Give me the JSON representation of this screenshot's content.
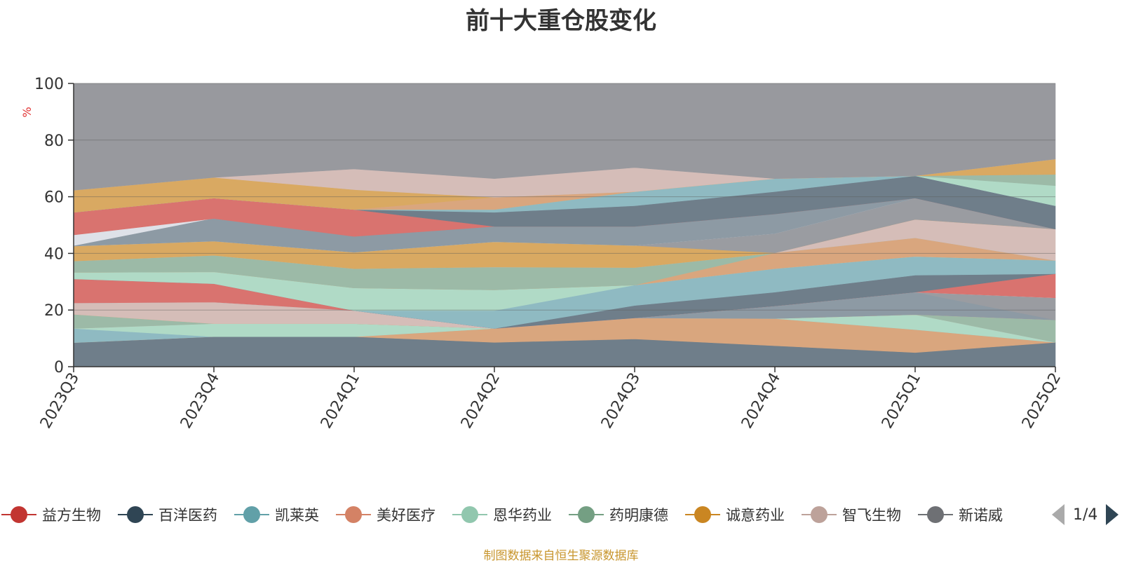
{
  "title": "前十大重仓股变化",
  "source_note": "制图数据来自恒生聚源数据库",
  "pager": {
    "text": "1/4"
  },
  "chart_data": {
    "type": "area",
    "stacked": true,
    "title": "前十大重仓股变化",
    "ylabel": "%",
    "ylim": [
      0,
      100
    ],
    "yticks": [
      0,
      20,
      40,
      60,
      80,
      100
    ],
    "categories": [
      "2023Q3",
      "2023Q4",
      "2024Q1",
      "2024Q2",
      "2024Q3",
      "2024Q4",
      "2025Q1",
      "2025Q2"
    ],
    "grid": true,
    "legend_position": "bottom",
    "bands": [
      {
        "color": "#6f7e8a",
        "lower": [
          0,
          0,
          0,
          0,
          0,
          0,
          0,
          0
        ],
        "upper": [
          8.5,
          10.6,
          10.6,
          8.6,
          9.8,
          7.4,
          5.0,
          8.6
        ]
      },
      {
        "color": "#d9a67e",
        "lower": [
          8.5,
          10.6,
          10.6,
          8.6,
          9.8,
          7.4,
          5.0,
          8.6
        ],
        "upper": [
          8.5,
          10.6,
          10.6,
          13.5,
          17.2,
          17.0,
          13.1,
          8.6
        ]
      },
      {
        "color": "#8fbac2",
        "lower": [
          8.5,
          10.6,
          10.6,
          13.5,
          17.2,
          17.0,
          13.1,
          8.6
        ],
        "upper": [
          13.5,
          10.6,
          10.6,
          13.5,
          17.2,
          17.0,
          13.1,
          8.6
        ]
      },
      {
        "color": "#b0dac6",
        "lower": [
          13.5,
          10.6,
          10.6,
          13.5,
          17.2,
          17.0,
          13.1,
          8.6
        ],
        "upper": [
          13.5,
          15.2,
          15.2,
          13.5,
          17.2,
          17.0,
          18.4,
          8.6
        ]
      },
      {
        "color": "#d5bdb8",
        "lower": [
          13.5,
          15.2,
          15.2,
          13.5,
          17.2,
          17.0,
          18.4,
          8.6
        ],
        "upper": [
          18.5,
          15.2,
          15.2,
          13.5,
          17.2,
          17.0,
          18.4,
          8.6
        ]
      },
      {
        "color": "#9cbaa7",
        "lower": [
          13.5,
          15.2,
          15.2,
          13.5,
          17.2,
          17.0,
          18.4,
          8.6
        ],
        "upper": [
          18.5,
          15.2,
          15.2,
          13.5,
          17.2,
          17.0,
          18.4,
          16.5
        ]
      },
      {
        "color": "#d9a962",
        "lower": [
          18.5,
          15.2,
          15.2,
          13.5,
          17.2,
          17.0,
          18.4,
          16.5
        ],
        "upper": [
          22.5,
          15.2,
          15.2,
          13.5,
          17.2,
          17.0,
          18.4,
          16.5
        ]
      },
      {
        "color": "#d5bdb8",
        "lower": [
          18.5,
          15.2,
          15.2,
          13.5,
          17.2,
          17.0,
          18.4,
          16.5
        ],
        "upper": [
          22.5,
          22.8,
          19.8,
          13.5,
          17.2,
          17.0,
          18.4,
          16.5
        ]
      },
      {
        "color": "#8d9aa4",
        "lower": [
          22.5,
          22.8,
          19.8,
          13.5,
          17.2,
          17.0,
          18.4,
          16.5
        ],
        "upper": [
          31,
          29.3,
          19.8,
          13.5,
          17.2,
          21.4,
          26.3,
          16.5
        ]
      },
      {
        "color": "#9a9ca1",
        "lower": [
          22.5,
          22.8,
          19.8,
          13.5,
          17.2,
          21.4,
          26.3,
          16.5
        ],
        "upper": [
          31,
          29.3,
          19.8,
          13.5,
          17.2,
          21.4,
          26.3,
          24.3
        ]
      },
      {
        "color": "#dee1e8",
        "lower": [
          22.5,
          22.8,
          19.8,
          13.5,
          17.2,
          21.4,
          26.3,
          24.3
        ],
        "upper": [
          31,
          29.3,
          19.8,
          13.5,
          17.2,
          21.4,
          26.3,
          24.3
        ]
      },
      {
        "color": "#d9736f",
        "lower": [
          22.5,
          22.8,
          19.8,
          13.5,
          17.2,
          21.4,
          26.3,
          24.3
        ],
        "upper": [
          31,
          29.3,
          19.8,
          13.5,
          17.2,
          21.4,
          26.3,
          32.8
        ]
      },
      {
        "color": "#6f7e8a",
        "lower": [
          31,
          29.3,
          19.8,
          13.5,
          17.2,
          21.4,
          26.3,
          32.8
        ],
        "upper": [
          31,
          29.3,
          19.8,
          13.5,
          21.6,
          26.3,
          32.3,
          32.8
        ]
      },
      {
        "color": "#8fbac2",
        "lower": [
          31,
          29.3,
          19.8,
          13.5,
          21.6,
          26.3,
          32.3,
          32.8
        ],
        "upper": [
          31,
          29.3,
          19.8,
          19.8,
          28.8,
          34.6,
          38.9,
          37.5
        ]
      },
      {
        "color": "#b0dac6",
        "lower": [
          31,
          29.3,
          19.8,
          19.8,
          28.8,
          34.6,
          38.9,
          37.5
        ],
        "upper": [
          33.3,
          33.5,
          27.8,
          27.1,
          28.8,
          34.6,
          38.9,
          37.5
        ]
      },
      {
        "color": "#d9a67e",
        "lower": [
          33.3,
          33.5,
          27.8,
          27.1,
          28.8,
          34.6,
          38.9,
          37.5
        ],
        "upper": [
          33.3,
          33.5,
          27.8,
          27.1,
          28.8,
          40.2,
          45.5,
          37.5
        ]
      },
      {
        "color": "#9cbaa7",
        "lower": [
          33.3,
          33.5,
          27.8,
          27.1,
          28.8,
          40.2,
          45.5,
          37.5
        ],
        "upper": [
          37.3,
          39.3,
          34.6,
          35.2,
          35.0,
          40.2,
          45.5,
          37.5
        ]
      },
      {
        "color": "#d5bdb8",
        "lower": [
          37.3,
          39.3,
          34.6,
          35.2,
          35.0,
          40.2,
          45.5,
          37.5
        ],
        "upper": [
          37.3,
          39.3,
          34.6,
          35.2,
          35.0,
          40.2,
          52.0,
          48.6
        ]
      },
      {
        "color": "#d9a962",
        "lower": [
          37.3,
          39.3,
          34.6,
          35.2,
          35.0,
          40.2,
          52.0,
          48.6
        ],
        "upper": [
          42.6,
          44.3,
          40.4,
          44.1,
          42.8,
          40.2,
          52.0,
          48.6
        ]
      },
      {
        "color": "#9a9ca1",
        "lower": [
          42.6,
          44.3,
          40.4,
          44.1,
          42.8,
          40.2,
          52.0,
          48.6
        ],
        "upper": [
          42.6,
          44.3,
          40.4,
          44.1,
          42.8,
          47.0,
          59.5,
          48.6
        ]
      },
      {
        "color": "#dee1e8",
        "lower": [
          42.6,
          44.3,
          40.4,
          44.1,
          42.8,
          47.0,
          59.5,
          48.6
        ],
        "upper": [
          46.5,
          52.3,
          40.4,
          44.1,
          42.8,
          47.0,
          59.5,
          48.6
        ]
      },
      {
        "color": "#8d9aa4",
        "lower": [
          42.6,
          44.3,
          40.4,
          44.1,
          42.8,
          47.0,
          59.5,
          48.6
        ],
        "upper": [
          42.6,
          52.3,
          46.0,
          49.5,
          49.5,
          53.9,
          59.5,
          48.6
        ]
      },
      {
        "color": "#d9736f",
        "lower": [
          46.5,
          52.3,
          46.0,
          49.5,
          49.5,
          53.9,
          59.5,
          48.6
        ],
        "upper": [
          54.5,
          59.5,
          55.5,
          49.5,
          49.5,
          53.9,
          59.5,
          48.6
        ]
      },
      {
        "color": "#6f7e8a",
        "lower": [
          54.5,
          59.5,
          55.5,
          49.5,
          49.5,
          53.9,
          59.5,
          48.6
        ],
        "upper": [
          54.5,
          59.5,
          55.5,
          54.5,
          56.8,
          61.8,
          67.4,
          56.8
        ]
      },
      {
        "color": "#8fbac2",
        "lower": [
          54.5,
          59.5,
          55.5,
          54.5,
          56.8,
          61.8,
          67.4,
          56.8
        ],
        "upper": [
          54.5,
          59.5,
          55.5,
          55.5,
          61.8,
          66.4,
          67.4,
          56.8
        ]
      },
      {
        "color": "#b0dac6",
        "lower": [
          54.5,
          59.5,
          55.5,
          55.5,
          61.8,
          66.4,
          67.4,
          56.8
        ],
        "upper": [
          54.5,
          59.5,
          55.5,
          55.5,
          61.8,
          66.4,
          67.4,
          63.9
        ]
      },
      {
        "color": "#9cbaa7",
        "lower": [
          54.5,
          59.5,
          55.5,
          55.5,
          61.8,
          66.4,
          67.4,
          63.9
        ],
        "upper": [
          54.5,
          59.5,
          55.5,
          55.5,
          61.8,
          66.4,
          67.4,
          67.9
        ]
      },
      {
        "color": "#d9a67e",
        "lower": [
          54.5,
          59.5,
          55.5,
          55.5,
          61.8,
          66.4,
          67.4,
          67.9
        ],
        "upper": [
          54.5,
          59.5,
          55.5,
          59.8,
          61.8,
          66.4,
          67.4,
          67.9
        ]
      },
      {
        "color": "#d9a962",
        "lower": [
          54.5,
          59.5,
          55.5,
          59.8,
          61.8,
          66.4,
          67.4,
          67.9
        ],
        "upper": [
          62.3,
          66.8,
          62.5,
          59.8,
          61.8,
          66.4,
          67.4,
          73.3
        ]
      },
      {
        "color": "#d5bdb8",
        "lower": [
          62.3,
          66.8,
          62.5,
          59.8,
          61.8,
          66.4,
          67.4,
          73.3
        ],
        "upper": [
          62.3,
          66.8,
          69.8,
          66.4,
          70.3,
          66.4,
          67.4,
          73.3
        ]
      },
      {
        "color": "#98999e",
        "lower": [
          62.3,
          66.8,
          69.8,
          66.4,
          70.3,
          66.4,
          67.4,
          73.3
        ],
        "upper": [
          100,
          100,
          100,
          100,
          100,
          100,
          100,
          100
        ]
      }
    ],
    "legend": [
      {
        "name": "益方生物",
        "color": "#c23531"
      },
      {
        "name": "百洋医药",
        "color": "#2f4554"
      },
      {
        "name": "凯莱英",
        "color": "#61a0a8"
      },
      {
        "name": "美好医疗",
        "color": "#d48265"
      },
      {
        "name": "恩华药业",
        "color": "#91c7ae"
      },
      {
        "name": "药明康德",
        "color": "#749f83"
      },
      {
        "name": "诚意药业",
        "color": "#ca8622"
      },
      {
        "name": "智飞生物",
        "color": "#bda29a"
      },
      {
        "name": "新诺威",
        "color": "#6e7074"
      }
    ]
  }
}
